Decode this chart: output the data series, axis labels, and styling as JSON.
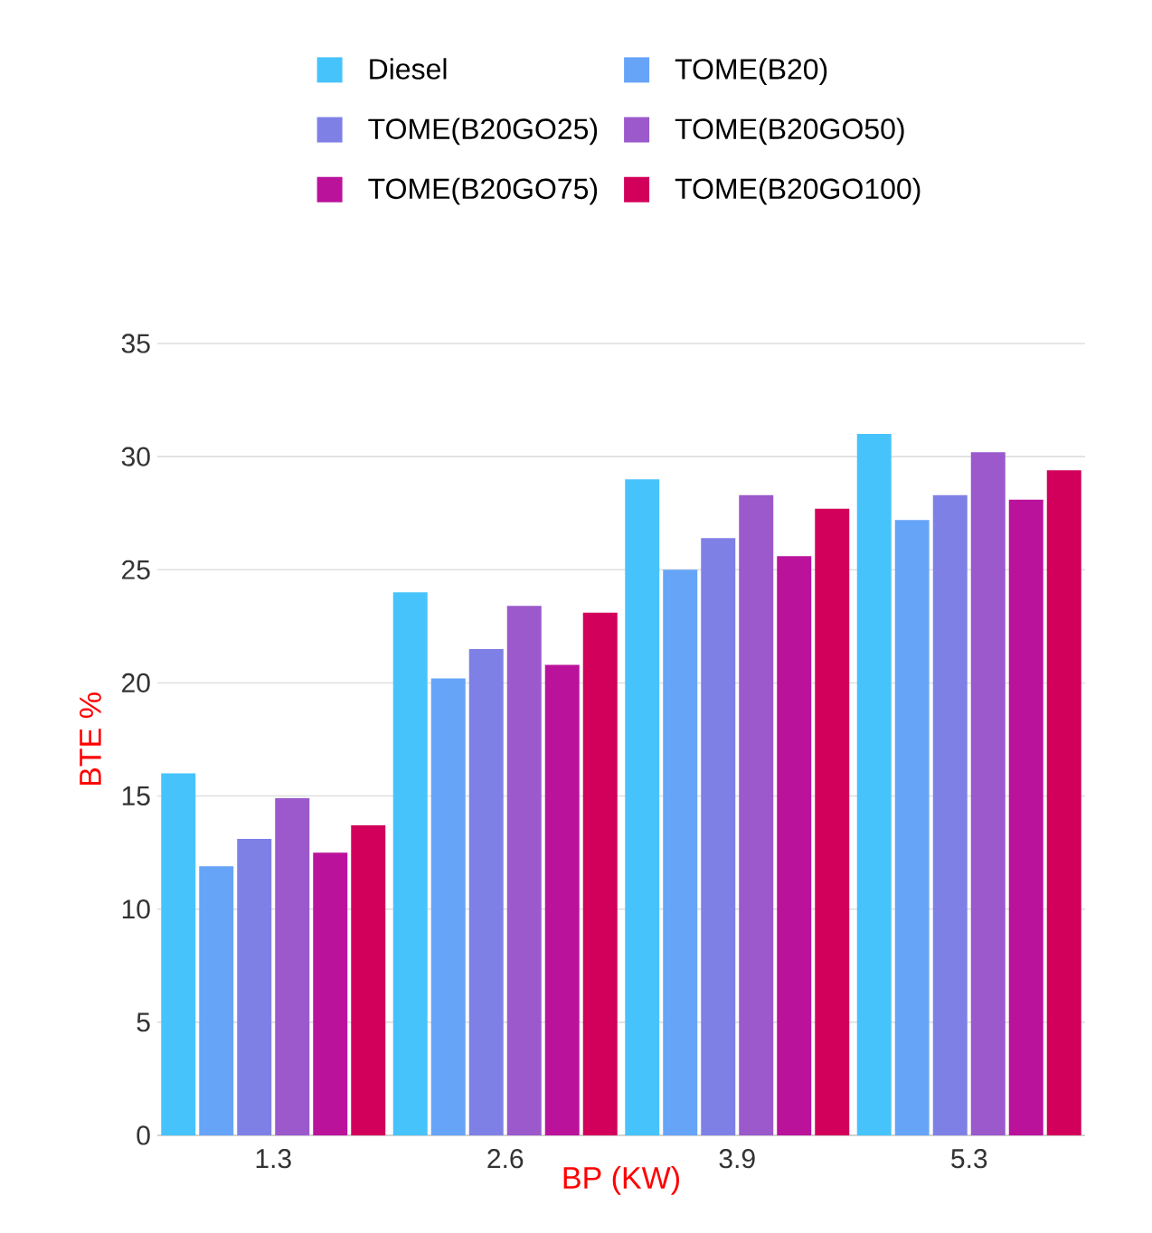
{
  "chart_data": {
    "type": "bar",
    "xlabel": "BP (KW)",
    "ylabel": "BTE %",
    "categories": [
      "1.3",
      "2.6",
      "3.9",
      "5.3"
    ],
    "series": [
      {
        "name": "Diesel",
        "color": "#47c3fc",
        "values": [
          16,
          24,
          29,
          31
        ]
      },
      {
        "name": "TOME(B20)",
        "color": "#66a4f8",
        "values": [
          11.9,
          20.2,
          25,
          27.2
        ]
      },
      {
        "name": "TOME(B20GO25)",
        "color": "#7f80e6",
        "values": [
          13.1,
          21.5,
          26.4,
          28.3
        ]
      },
      {
        "name": "TOME(B20GO50)",
        "color": "#9b59cc",
        "values": [
          14.9,
          23.4,
          28.3,
          30.2
        ]
      },
      {
        "name": "TOME(B20GO75)",
        "color": "#bb129b",
        "values": [
          12.5,
          20.8,
          25.6,
          28.1
        ]
      },
      {
        "name": "TOME(B20GO100)",
        "color": "#d2005a",
        "values": [
          13.7,
          23.1,
          27.7,
          29.4
        ]
      }
    ],
    "ylim": [
      0,
      35
    ],
    "yticks": [
      0,
      5,
      10,
      15,
      20,
      25,
      30,
      35
    ],
    "grid": "y",
    "legend": "top"
  }
}
